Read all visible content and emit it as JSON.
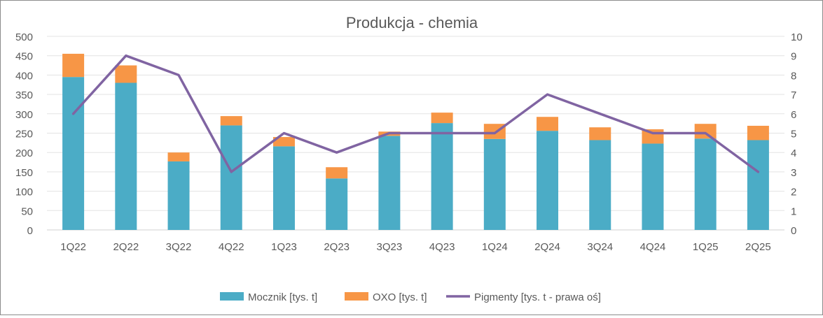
{
  "chart_data": {
    "type": "bar",
    "title": "Produkcja - chemia",
    "categories": [
      "1Q22",
      "2Q22",
      "3Q22",
      "4Q22",
      "1Q23",
      "2Q23",
      "3Q23",
      "4Q23",
      "1Q24",
      "2Q24",
      "3Q24",
      "4Q24",
      "1Q25",
      "2Q25"
    ],
    "series": [
      {
        "name": "Mocznik  [tys. t]",
        "kind": "bar",
        "stack": "primary",
        "axis": "left",
        "color": "#4BACC6",
        "values": [
          395,
          380,
          177,
          270,
          216,
          133,
          243,
          276,
          235,
          256,
          232,
          223,
          236,
          232
        ]
      },
      {
        "name": "OXO [tys. t]",
        "kind": "bar",
        "stack": "primary",
        "axis": "left",
        "color": "#F79646",
        "values": [
          60,
          45,
          23,
          24,
          24,
          29,
          11,
          27,
          39,
          36,
          33,
          37,
          38,
          37
        ]
      },
      {
        "name": "Pigmenty  [tys. t - prawa oś]",
        "kind": "line",
        "axis": "right",
        "color": "#8064A2",
        "values": [
          6,
          9,
          8,
          3,
          5,
          4,
          5,
          5,
          5,
          7,
          6,
          5,
          5,
          3
        ]
      }
    ],
    "y_left": {
      "min": 0,
      "max": 500,
      "ticks": [
        "0",
        "50",
        "100",
        "150",
        "200",
        "250",
        "300",
        "350",
        "400",
        "450",
        "500"
      ]
    },
    "y_right": {
      "min": 0,
      "max": 10,
      "ticks": [
        "0",
        "1",
        "2",
        "3",
        "4",
        "5",
        "6",
        "7",
        "8",
        "9",
        "10"
      ]
    },
    "grid": true,
    "legend_position": "bottom"
  }
}
